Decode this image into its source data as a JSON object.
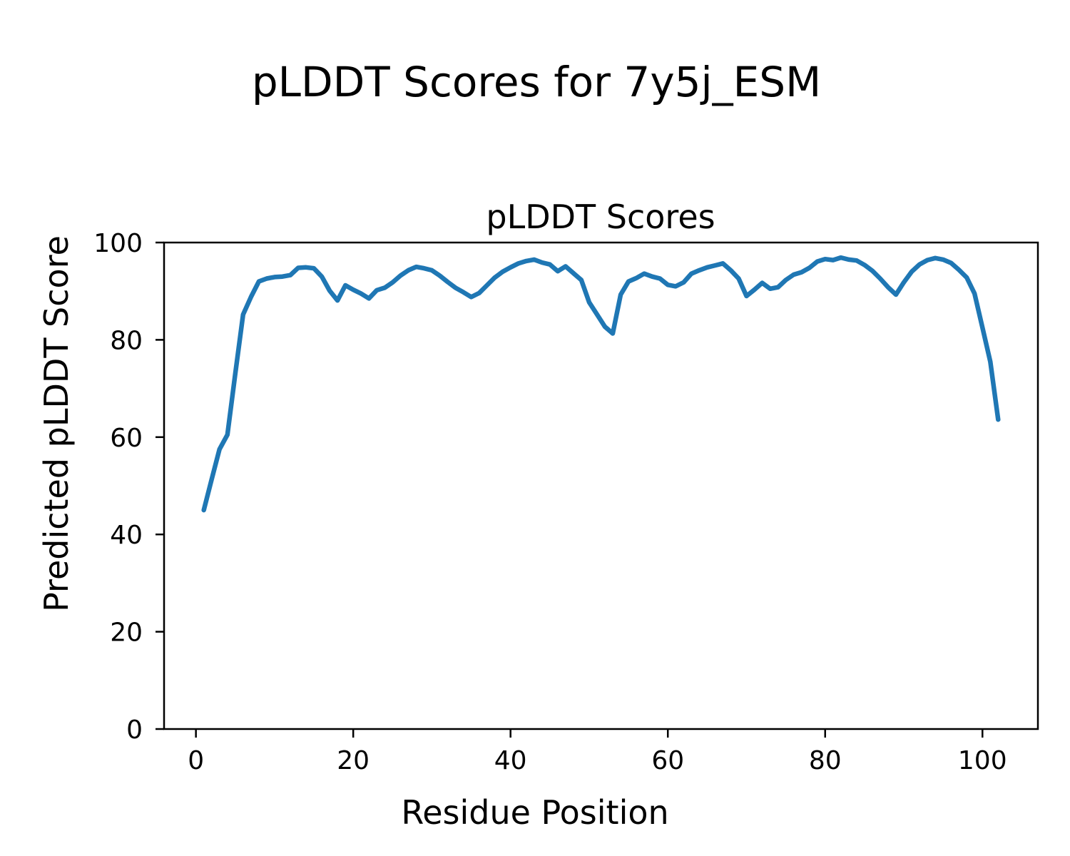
{
  "figure": {
    "suptitle": "pLDDT Scores for 7y5j_ESM",
    "background_color": "#ffffff",
    "text_color": "#000000"
  },
  "chart_data": {
    "type": "line",
    "title": "pLDDT Scores",
    "xlabel": "Residue Position",
    "ylabel": "Predicted pLDDT Score",
    "x_start": 1,
    "x_step": 1,
    "values": [
      45.0,
      51.3,
      57.5,
      60.5,
      73.0,
      85.2,
      88.8,
      92.0,
      92.6,
      92.9,
      93.0,
      93.3,
      94.8,
      94.9,
      94.7,
      93.0,
      90.1,
      88.1,
      91.2,
      90.3,
      89.5,
      88.5,
      90.2,
      90.7,
      91.8,
      93.2,
      94.3,
      95.0,
      94.7,
      94.3,
      93.2,
      91.9,
      90.7,
      89.8,
      88.8,
      89.6,
      91.2,
      92.8,
      94.0,
      94.9,
      95.7,
      96.2,
      96.5,
      95.9,
      95.5,
      94.1,
      95.1,
      93.7,
      92.3,
      87.7,
      85.2,
      82.7,
      81.3,
      89.3,
      92.0,
      92.7,
      93.6,
      93.0,
      92.6,
      91.3,
      91.0,
      91.8,
      93.6,
      94.3,
      94.9,
      95.3,
      95.7,
      94.3,
      92.6,
      89.0,
      90.3,
      91.7,
      90.5,
      90.8,
      92.3,
      93.4,
      93.9,
      94.8,
      96.1,
      96.6,
      96.4,
      96.9,
      96.5,
      96.3,
      95.4,
      94.2,
      92.6,
      90.8,
      89.3,
      91.8,
      94.0,
      95.5,
      96.4,
      96.8,
      96.5,
      95.8,
      94.4,
      92.8,
      89.5,
      82.5,
      75.5,
      63.6
    ],
    "xlim": [
      -4.05,
      107.05
    ],
    "ylim": [
      0,
      100
    ],
    "xticks": [
      0,
      20,
      40,
      60,
      80,
      100
    ],
    "yticks": [
      0,
      20,
      40,
      60,
      80,
      100
    ],
    "grid": false,
    "legend": "none",
    "line_color": "#1f77b4",
    "line_width": 6.5
  }
}
